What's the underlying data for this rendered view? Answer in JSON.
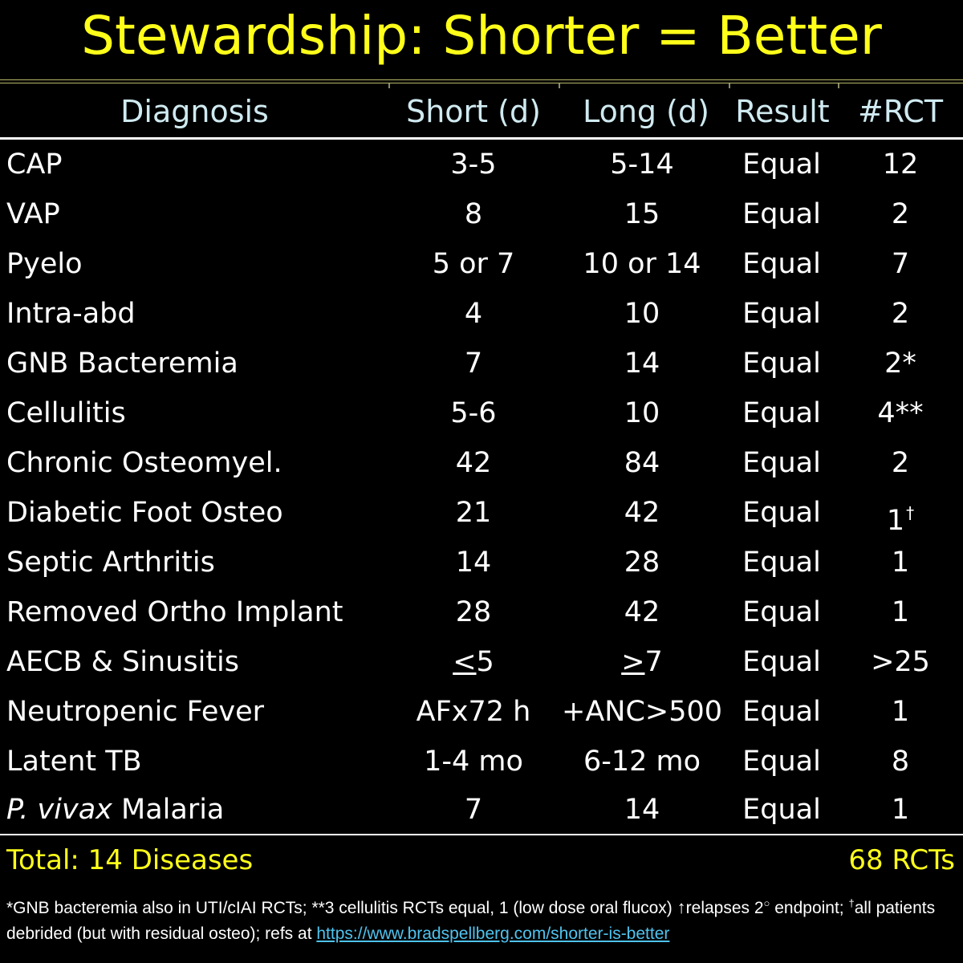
{
  "title": "Stewardship: Shorter = Better",
  "headers": {
    "diagnosis": "Diagnosis",
    "short": "Short (d)",
    "long": "Long (d)",
    "result": "Result",
    "rct": "#RCT"
  },
  "rows": [
    {
      "diagnosis": "CAP",
      "short": "3-5",
      "long": "5-14",
      "result": "Equal",
      "rct": "12"
    },
    {
      "diagnosis": "VAP",
      "short": "8",
      "long": "15",
      "result": "Equal",
      "rct": "2"
    },
    {
      "diagnosis": "Pyelo",
      "short": "5 or 7",
      "long": "10 or 14",
      "result": "Equal",
      "rct": "7"
    },
    {
      "diagnosis": "Intra-abd",
      "short": "4",
      "long": "10",
      "result": "Equal",
      "rct": "2"
    },
    {
      "diagnosis": "GNB Bacteremia",
      "short": "7",
      "long": "14",
      "result": "Equal",
      "rct": "2*"
    },
    {
      "diagnosis": "Cellulitis",
      "short": "5-6",
      "long": "10",
      "result": "Equal",
      "rct": "4**"
    },
    {
      "diagnosis": "Chronic Osteomyel.",
      "short": "42",
      "long": "84",
      "result": "Equal",
      "rct": "2"
    },
    {
      "diagnosis": "Diabetic Foot Osteo",
      "short": "21",
      "long": "42",
      "result": "Equal",
      "rct": "1",
      "rct_sup": "†"
    },
    {
      "diagnosis": "Septic Arthritis",
      "short": "14",
      "long": "28",
      "result": "Equal",
      "rct": "1"
    },
    {
      "diagnosis": "Removed Ortho Implant",
      "short": "28",
      "long": "42",
      "result": "Equal",
      "rct": "1"
    },
    {
      "diagnosis": "AECB & Sinusitis",
      "short_underlined": "<",
      "short": "5",
      "long_underlined": ">",
      "long": "7",
      "result": "Equal",
      "rct": ">25"
    },
    {
      "diagnosis": "Neutropenic Fever",
      "short": "AFx72 h",
      "long": "+ANC>500",
      "result": "Equal",
      "rct": "1"
    },
    {
      "diagnosis": "Latent TB",
      "short": "1-4 mo",
      "long": "6-12 mo",
      "result": "Equal",
      "rct": "8"
    },
    {
      "diagnosis_italic": "P. vivax",
      "diagnosis": "Malaria",
      "short": "7",
      "long": "14",
      "result": "Equal",
      "rct": "1"
    }
  ],
  "total": {
    "left": "Total: 14 Diseases",
    "right": "68 RCTs"
  },
  "footnote": {
    "part1": "*GNB bacteremia also in UTI/cIAI RCTs; **3 cellulitis RCTs equal, 1 (low dose oral flucox) ",
    "arrow": "↑",
    "part2": "relapses 2",
    "degree": "○",
    "part3": " endpoint; ",
    "dagger": "†",
    "part4": "all patients debrided (but with residual osteo); refs at ",
    "link_text": "https://www.bradspellberg.com/shorter-is-better"
  },
  "colors": {
    "title": "#ffff1a",
    "header_text": "#cfeaf0",
    "body_text": "#ffffff",
    "total_text": "#ffff1a",
    "link": "#4fc3ee",
    "background": "#000000"
  }
}
